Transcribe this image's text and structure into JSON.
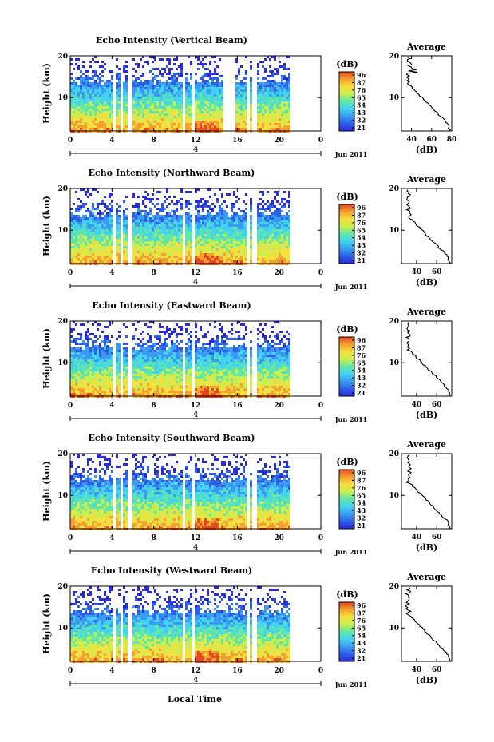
{
  "chart_data": [
    {
      "type": "heatmap",
      "title": "Echo Intensity (Vertical Beam)",
      "ylabel": "Height (km)",
      "xticks": [
        "0",
        "4",
        "8",
        "12",
        "16",
        "20",
        "0"
      ],
      "yticks": [
        "20",
        "10"
      ],
      "xlim": [
        0,
        24
      ],
      "ylim": [
        2,
        20
      ],
      "data_gap_hours": [
        [
          4.0,
          4.3
        ],
        [
          4.7,
          5.0
        ],
        [
          5.5,
          5.9
        ],
        [
          10.6,
          10.9
        ],
        [
          11.6,
          11.9
        ],
        [
          14.6,
          15.8
        ],
        [
          16.8,
          17.0
        ],
        [
          17.4,
          17.7
        ]
      ],
      "colorbar": {
        "unit": "(dB)",
        "ticks": [
          "96",
          "87",
          "76",
          "65",
          "54",
          "43",
          "32",
          "21"
        ],
        "range": [
          21,
          96
        ]
      },
      "date_marker": {
        "label": "4",
        "date": "Jun 2011"
      },
      "average_profile": {
        "title": "Average",
        "xlabel": "(dB)",
        "xticks": [
          "40",
          "60",
          "80"
        ],
        "xlim": [
          30,
          80
        ],
        "yticks": [
          "20",
          "10"
        ],
        "ylim": [
          2,
          20
        ]
      }
    },
    {
      "type": "heatmap",
      "title": "Echo Intensity (Northward Beam)",
      "ylabel": "Height (km)",
      "xticks": [
        "0",
        "4",
        "8",
        "12",
        "16",
        "20",
        "0"
      ],
      "yticks": [
        "20",
        "10"
      ],
      "xlim": [
        0,
        24
      ],
      "ylim": [
        2,
        20
      ],
      "data_gap_hours": [
        [
          4.0,
          4.3
        ],
        [
          4.7,
          5.0
        ],
        [
          5.5,
          5.9
        ],
        [
          10.6,
          10.9
        ],
        [
          11.6,
          11.9
        ],
        [
          15.6,
          15.8
        ],
        [
          16.8,
          17.0
        ],
        [
          17.4,
          17.7
        ]
      ],
      "colorbar": {
        "unit": "(dB)",
        "ticks": [
          "96",
          "87",
          "76",
          "65",
          "54",
          "43",
          "32",
          "21"
        ],
        "range": [
          21,
          96
        ]
      },
      "date_marker": {
        "label": "4",
        "date": "Jun 2011"
      },
      "average_profile": {
        "title": "Average",
        "xlabel": "(dB)",
        "xticks": [
          "40",
          "60"
        ],
        "xlim": [
          25,
          75
        ],
        "yticks": [
          "20",
          "10"
        ],
        "ylim": [
          2,
          20
        ]
      }
    },
    {
      "type": "heatmap",
      "title": "Echo Intensity (Eastward Beam)",
      "ylabel": "Height (km)",
      "xticks": [
        "0",
        "4",
        "8",
        "12",
        "16",
        "20",
        "0"
      ],
      "yticks": [
        "20",
        "10"
      ],
      "xlim": [
        0,
        24
      ],
      "ylim": [
        2,
        20
      ],
      "data_gap_hours": [
        [
          4.0,
          4.3
        ],
        [
          4.7,
          5.0
        ],
        [
          5.5,
          5.9
        ],
        [
          10.6,
          10.9
        ],
        [
          11.6,
          11.9
        ],
        [
          15.6,
          15.8
        ],
        [
          16.8,
          17.0
        ],
        [
          17.4,
          17.7
        ]
      ],
      "colorbar": {
        "unit": "(dB)",
        "ticks": [
          "96",
          "87",
          "76",
          "65",
          "54",
          "43",
          "32",
          "21"
        ],
        "range": [
          21,
          96
        ]
      },
      "date_marker": {
        "label": "4",
        "date": "Jun 2011"
      },
      "average_profile": {
        "title": "Average",
        "xlabel": "(dB)",
        "xticks": [
          "40",
          "60"
        ],
        "xlim": [
          25,
          75
        ],
        "yticks": [
          "20",
          "10"
        ],
        "ylim": [
          2,
          20
        ]
      }
    },
    {
      "type": "heatmap",
      "title": "Echo Intensity (Southward Beam)",
      "ylabel": "Height (km)",
      "xticks": [
        "0",
        "4",
        "8",
        "12",
        "16",
        "20",
        "0"
      ],
      "yticks": [
        "20",
        "10"
      ],
      "xlim": [
        0,
        24
      ],
      "ylim": [
        2,
        20
      ],
      "data_gap_hours": [
        [
          4.0,
          4.3
        ],
        [
          4.7,
          5.0
        ],
        [
          5.5,
          5.9
        ],
        [
          10.6,
          10.9
        ],
        [
          11.6,
          11.9
        ],
        [
          15.6,
          15.8
        ],
        [
          16.8,
          17.0
        ],
        [
          17.4,
          17.7
        ]
      ],
      "colorbar": {
        "unit": "(dB)",
        "ticks": [
          "96",
          "87",
          "76",
          "65",
          "54",
          "43",
          "32",
          "21"
        ],
        "range": [
          21,
          96
        ]
      },
      "date_marker": {
        "label": "4",
        "date": "Jun 2011"
      },
      "average_profile": {
        "title": "Average",
        "xlabel": "(dB)",
        "xticks": [
          "40",
          "60"
        ],
        "xlim": [
          25,
          75
        ],
        "yticks": [
          "20",
          "10"
        ],
        "ylim": [
          2,
          20
        ]
      }
    },
    {
      "type": "heatmap",
      "title": "Echo Intensity (Westward Beam)",
      "ylabel": "Height (km)",
      "xticks": [
        "0",
        "4",
        "8",
        "12",
        "16",
        "20",
        "0"
      ],
      "yticks": [
        "20",
        "10"
      ],
      "xlim": [
        0,
        24
      ],
      "ylim": [
        2,
        20
      ],
      "data_gap_hours": [
        [
          4.0,
          4.3
        ],
        [
          4.7,
          5.0
        ],
        [
          5.5,
          5.9
        ],
        [
          10.6,
          10.9
        ],
        [
          11.6,
          11.9
        ],
        [
          15.6,
          15.8
        ],
        [
          16.8,
          17.0
        ],
        [
          17.4,
          17.7
        ]
      ],
      "colorbar": {
        "unit": "(dB)",
        "ticks": [
          "96",
          "87",
          "76",
          "65",
          "54",
          "43",
          "32",
          "21"
        ],
        "range": [
          21,
          96
        ]
      },
      "date_marker": {
        "label": "4",
        "date": "Jun 2011"
      },
      "average_profile": {
        "title": "Average",
        "xlabel": "(dB)",
        "xticks": [
          "40",
          "60"
        ],
        "xlim": [
          25,
          75
        ],
        "yticks": [
          "20",
          "10"
        ],
        "ylim": [
          2,
          20
        ]
      }
    }
  ],
  "xaxis_label": "Local Time",
  "colormap": [
    "#2a2bd8",
    "#2f5fe8",
    "#3a9cf0",
    "#43d3f0",
    "#5fe6a8",
    "#c8ee50",
    "#f5e040",
    "#f5a030",
    "#e84a20"
  ]
}
